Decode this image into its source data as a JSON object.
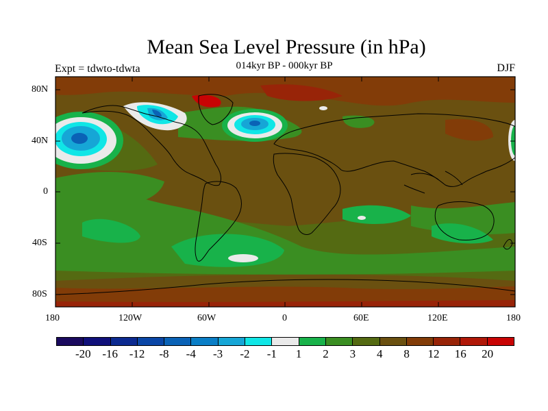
{
  "title": "Mean Sea Level Pressure (in hPa)",
  "subtitle": "014kyr BP - 000kyr BP",
  "experiment": "Expt = tdwto-tdwta",
  "season": "DJF",
  "x_ticks": [
    "180",
    "120W",
    "60W",
    "0",
    "60E",
    "120E",
    "180"
  ],
  "y_ticks": [
    "80N",
    "40N",
    "0",
    "40S",
    "80S"
  ],
  "colorbar": {
    "labels": [
      "-20",
      "-16",
      "-12",
      "-8",
      "-4",
      "-3",
      "-2",
      "-1",
      "1",
      "2",
      "3",
      "4",
      "8",
      "12",
      "16",
      "20"
    ],
    "colors": [
      "#1a0a5e",
      "#10107a",
      "#0c2a90",
      "#0a46a6",
      "#0a62b6",
      "#0a7ec6",
      "#16a6d6",
      "#10e6e6",
      "#eaeaea",
      "#18b24a",
      "#3a8e22",
      "#546a12",
      "#6a5010",
      "#823c08",
      "#982408",
      "#b01808",
      "#c80404"
    ]
  },
  "map_colors": {
    "background": "#6a5010",
    "lat4to8": "#546a12",
    "lat3to4": "#3a8e22",
    "lat2to3": "#18b24a",
    "near_zero": "#eaeaea",
    "neg1": "#10e6e6",
    "neg2": "#16a6d6",
    "neg3": "#0a7ec6",
    "neg4": "#0a62b6",
    "pos12": "#823c08",
    "pos16": "#982408",
    "pos20": "#c80404"
  }
}
